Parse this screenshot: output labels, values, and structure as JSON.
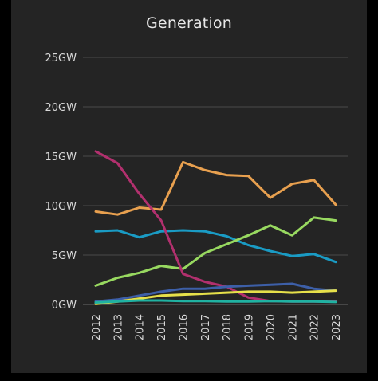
{
  "chart_data": {
    "type": "line",
    "title": "Generation",
    "xlabel": "",
    "ylabel": "",
    "x": [
      "2012",
      "2013",
      "2014",
      "2015",
      "2016",
      "2017",
      "2018",
      "2019",
      "2020",
      "2021",
      "2022",
      "2023"
    ],
    "y_ticks": [
      "0GW",
      "5GW",
      "10GW",
      "15GW",
      "20GW",
      "25GW"
    ],
    "ylim": [
      0,
      25
    ],
    "grid": true,
    "series": [
      {
        "color": "#e8a04f",
        "values": [
          9.4,
          9.1,
          9.8,
          9.6,
          14.4,
          13.6,
          13.1,
          13.0,
          10.8,
          12.2,
          12.6,
          10.1
        ]
      },
      {
        "color": "#1a9bc4",
        "values": [
          7.4,
          7.5,
          6.8,
          7.4,
          7.5,
          7.4,
          6.9,
          6.0,
          5.4,
          4.9,
          5.1,
          4.3
        ]
      },
      {
        "color": "#98d960",
        "values": [
          1.9,
          2.7,
          3.2,
          3.9,
          3.6,
          5.2,
          6.1,
          7.0,
          8.0,
          7.0,
          8.8,
          8.5
        ]
      },
      {
        "color": "#b2306e",
        "values": [
          15.5,
          14.3,
          11.2,
          8.5,
          3.1,
          2.3,
          1.8,
          0.7,
          0.35,
          0.3,
          0.3,
          0.3
        ]
      },
      {
        "color": "#3d5fa8",
        "values": [
          0.3,
          0.5,
          0.9,
          1.3,
          1.6,
          1.6,
          1.8,
          1.9,
          2.0,
          2.1,
          1.6,
          1.4
        ]
      },
      {
        "color": "#e6e04a",
        "values": [
          0.05,
          0.3,
          0.6,
          0.9,
          1.0,
          1.1,
          1.2,
          1.3,
          1.3,
          1.2,
          1.3,
          1.4
        ]
      },
      {
        "color": "#20b2a2",
        "values": [
          0.2,
          0.3,
          0.4,
          0.4,
          0.35,
          0.35,
          0.3,
          0.3,
          0.35,
          0.3,
          0.3,
          0.25
        ]
      }
    ]
  }
}
